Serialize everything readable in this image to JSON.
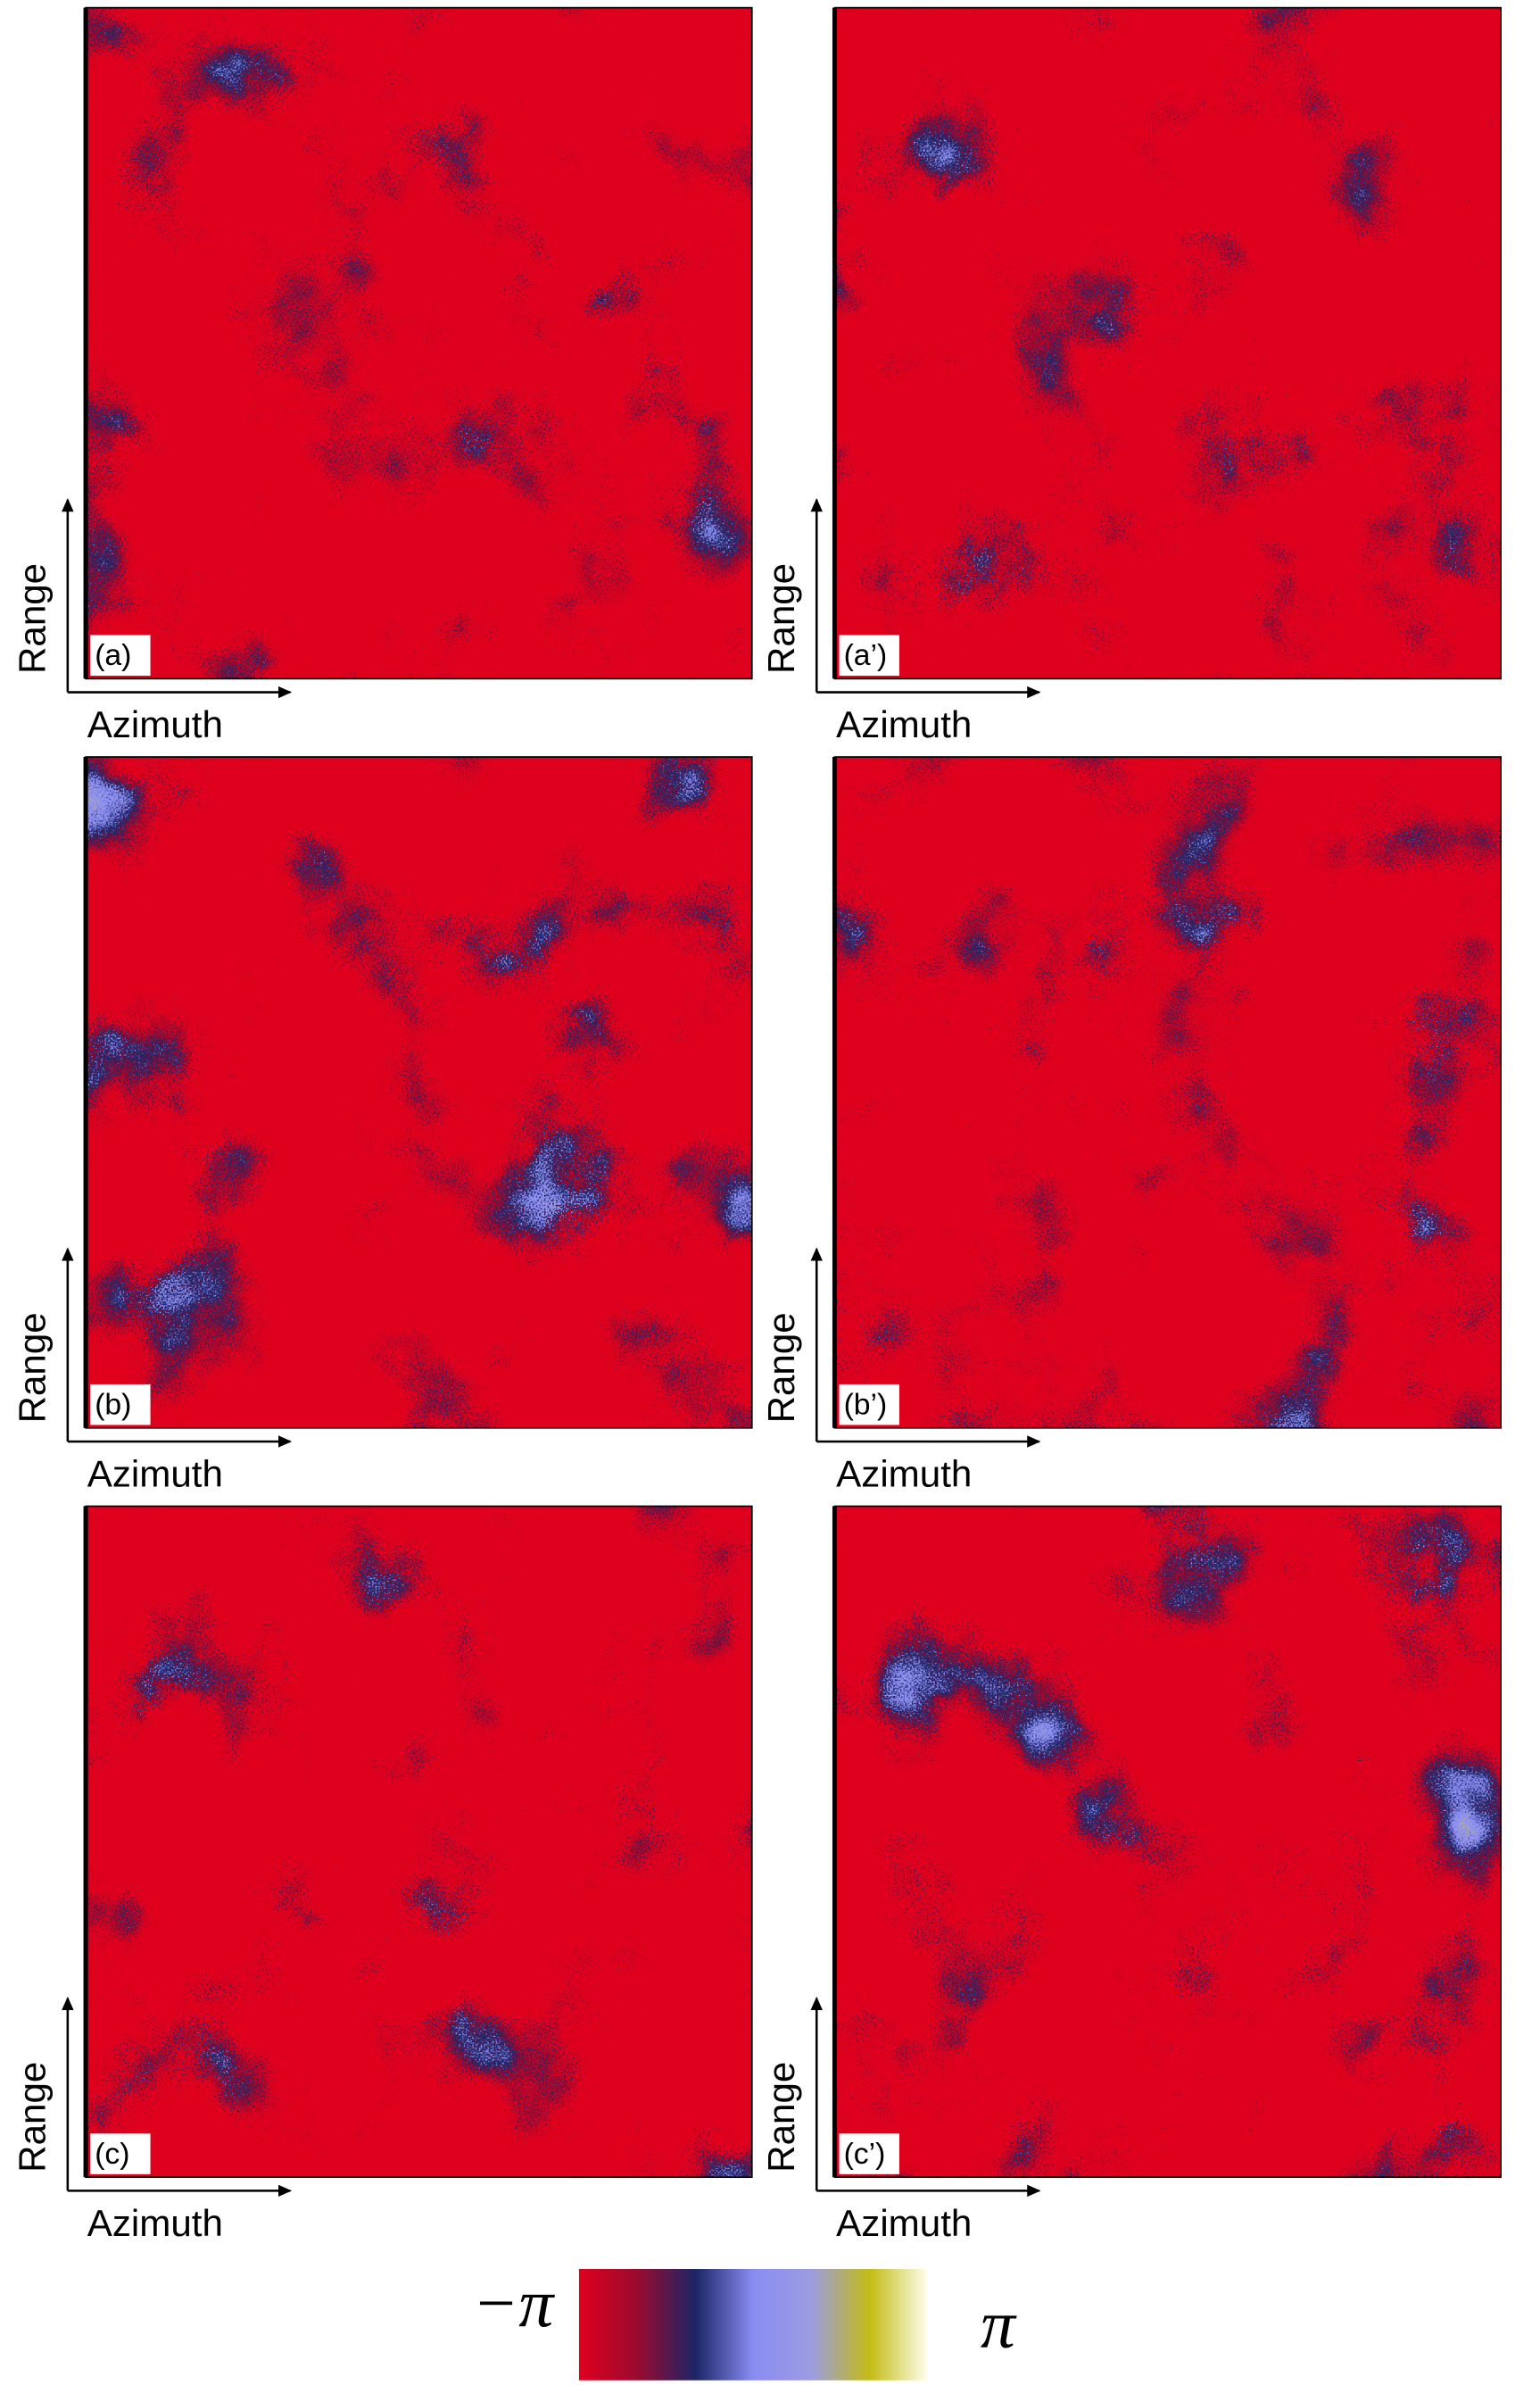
{
  "panels": [
    {
      "label": "(a)",
      "x_axis": "Azimuth",
      "y_axis": "Range"
    },
    {
      "label": "(a’)",
      "x_axis": "Azimuth",
      "y_axis": "Range"
    },
    {
      "label": "(b)",
      "x_axis": "Azimuth",
      "y_axis": "Range"
    },
    {
      "label": "(b’)",
      "x_axis": "Azimuth",
      "y_axis": "Range"
    },
    {
      "label": "(c)",
      "x_axis": "Azimuth",
      "y_axis": "Range"
    },
    {
      "label": "(c’)",
      "x_axis": "Azimuth",
      "y_axis": "Range"
    }
  ],
  "colorbar": {
    "min_label": "−π",
    "max_label": "π",
    "colors": [
      "#e0001e",
      "#9a0a30",
      "#1c2466",
      "#8a8cf2",
      "#9c9ce0",
      "#c4bc14",
      "#fffff0"
    ]
  }
}
